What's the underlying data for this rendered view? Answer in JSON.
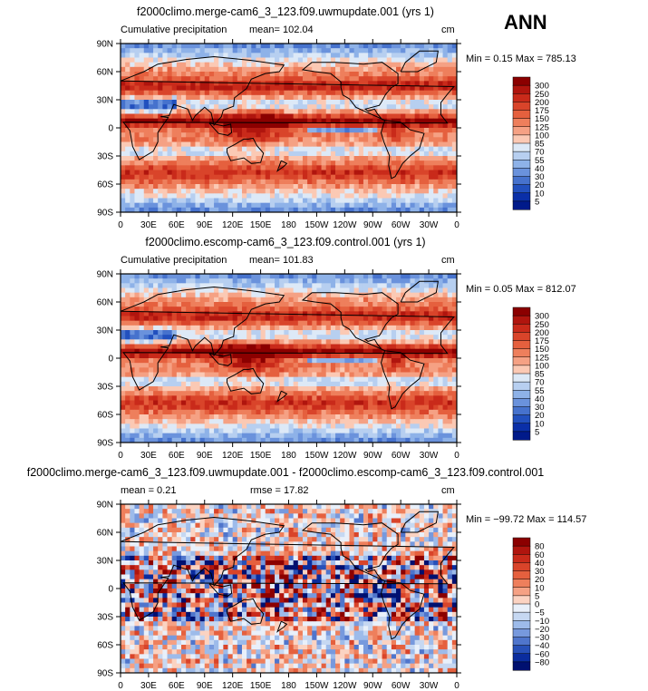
{
  "season": "ANN",
  "chart_data": [
    {
      "type": "heatmap",
      "title": "f2000climo.merge-cam6_3_123.f09.uwmupdate.001 (yrs 1)",
      "variable": "Cumulative precipitation",
      "mean_label": "mean= 102.04",
      "units": "cm",
      "minmax_label": "Min =    0.15 Max = 785.13",
      "min": 0.15,
      "max": 785.13,
      "mean": 102.04,
      "lat_ticks": [
        "90N",
        "60N",
        "30N",
        "0",
        "30S",
        "60S",
        "90S"
      ],
      "lon_ticks": [
        "0",
        "30E",
        "60E",
        "90E",
        "120E",
        "150E",
        "180",
        "150W",
        "120W",
        "90W",
        "60W",
        "30W",
        "0"
      ],
      "levels": [
        "300",
        "250",
        "200",
        "175",
        "150",
        "125",
        "100",
        "85",
        "70",
        "55",
        "40",
        "30",
        "20",
        "10",
        "5"
      ],
      "colors": [
        "#8b0000",
        "#b0150e",
        "#c92a1a",
        "#d9442a",
        "#e5603e",
        "#ee7f5c",
        "#f5a184",
        "#fbc9b4",
        "#dde9f7",
        "#b7cff0",
        "#8eb2e8",
        "#6a92dc",
        "#4672cd",
        "#2250be",
        "#0a2fa8",
        "#001a8a"
      ]
    },
    {
      "type": "heatmap",
      "title": "f2000climo.escomp-cam6_3_123.f09.control.001 (yrs 1)",
      "variable": "Cumulative precipitation",
      "mean_label": "mean= 101.83",
      "units": "cm",
      "minmax_label": "Min =    0.05 Max = 812.07",
      "min": 0.05,
      "max": 812.07,
      "mean": 101.83,
      "lat_ticks": [
        "90N",
        "60N",
        "30N",
        "0",
        "30S",
        "60S",
        "90S"
      ],
      "lon_ticks": [
        "0",
        "30E",
        "60E",
        "90E",
        "120E",
        "150E",
        "180",
        "150W",
        "120W",
        "90W",
        "60W",
        "30W",
        "0"
      ],
      "levels": [
        "300",
        "250",
        "200",
        "175",
        "150",
        "125",
        "100",
        "85",
        "70",
        "55",
        "40",
        "30",
        "20",
        "10",
        "5"
      ],
      "colors": [
        "#8b0000",
        "#b0150e",
        "#c92a1a",
        "#d9442a",
        "#e5603e",
        "#ee7f5c",
        "#f5a184",
        "#fbc9b4",
        "#dde9f7",
        "#b7cff0",
        "#8eb2e8",
        "#6a92dc",
        "#4672cd",
        "#2250be",
        "#0a2fa8",
        "#001a8a"
      ]
    },
    {
      "type": "heatmap",
      "title": "f2000climo.merge-cam6_3_123.f09.uwmupdate.001 - f2000climo.escomp-cam6_3_123.f09.control.001",
      "mean_label": "mean =    0.21",
      "rmse_label": "rmse =   17.82",
      "units": "cm",
      "minmax_label": "Min = −99.72 Max = 114.57",
      "min": -99.72,
      "max": 114.57,
      "mean": 0.21,
      "rmse": 17.82,
      "lat_ticks": [
        "90N",
        "60N",
        "30N",
        "0",
        "30S",
        "60S",
        "90S"
      ],
      "lon_ticks": [
        "0",
        "30E",
        "60E",
        "90E",
        "120E",
        "150E",
        "180",
        "150W",
        "120W",
        "90W",
        "60W",
        "30W",
        "0"
      ],
      "levels": [
        "80",
        "60",
        "40",
        "30",
        "20",
        "10",
        "5",
        "0",
        "−5",
        "−10",
        "−20",
        "−30",
        "−40",
        "−60",
        "−80"
      ],
      "colors": [
        "#8b0000",
        "#b0150e",
        "#c92a1a",
        "#d9442a",
        "#e5603e",
        "#ee7f5c",
        "#f5a184",
        "#fbd3c2",
        "#e9f0fa",
        "#c6d8f2",
        "#9dbbea",
        "#7799dd",
        "#4f75cc",
        "#2750b8",
        "#0a2c9e",
        "#001070"
      ]
    }
  ]
}
